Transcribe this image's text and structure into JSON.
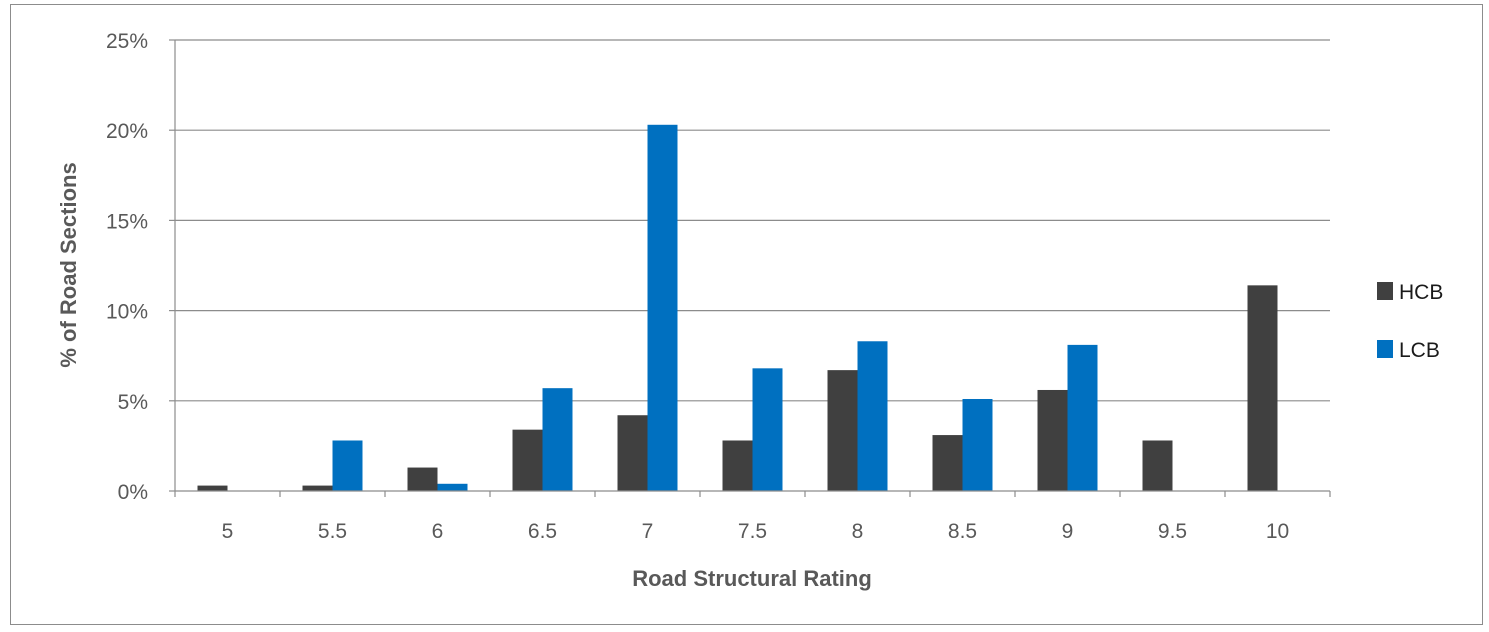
{
  "chart_data": {
    "type": "bar",
    "title": "",
    "xlabel": "Road Structural Rating",
    "ylabel": "% of Road Sections",
    "categories": [
      "5",
      "5.5",
      "6",
      "6.5",
      "7",
      "7.5",
      "8",
      "8.5",
      "9",
      "9.5",
      "10"
    ],
    "series": [
      {
        "name": "HCB",
        "color": "#404040",
        "values": [
          0.3,
          0.3,
          1.3,
          3.4,
          4.2,
          2.8,
          6.7,
          3.1,
          5.6,
          2.8,
          11.4
        ]
      },
      {
        "name": "LCB",
        "color": "#0070c0",
        "values": [
          0,
          2.8,
          0.4,
          5.7,
          20.3,
          6.8,
          8.3,
          5.1,
          8.1,
          0,
          0
        ]
      }
    ],
    "ylim": [
      0,
      25
    ],
    "yticks": [
      0,
      5,
      10,
      15,
      20,
      25
    ],
    "ytick_labels": [
      "0%",
      "5%",
      "10%",
      "15%",
      "20%",
      "25%"
    ],
    "grid": true,
    "legend_position": "right"
  }
}
